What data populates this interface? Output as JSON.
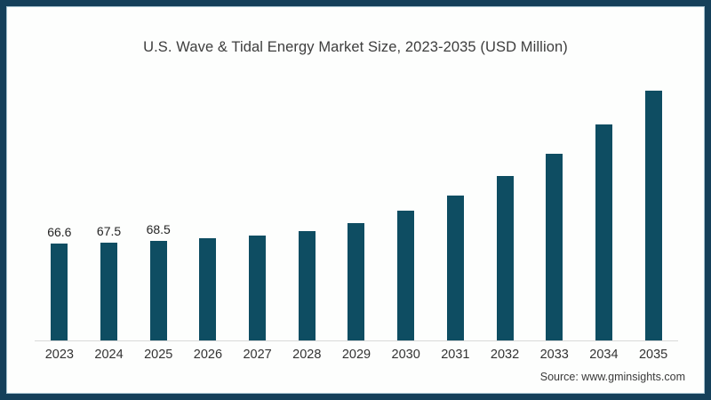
{
  "title": "U.S. Wave & Tidal Energy Market Size, 2023-2035 (USD Million)",
  "source": "Source: www.gminsights.com",
  "colors": {
    "frame_border": "#15405a",
    "bar": "#0e4d62",
    "axis_line": "#d9d9d9",
    "title_text": "#3d3d3d",
    "background": "#fdfefd"
  },
  "chart_data": {
    "type": "bar",
    "title": "U.S. Wave & Tidal Energy Market Size, 2023-2035 (USD Million)",
    "xlabel": "",
    "ylabel": "",
    "categories": [
      "2023",
      "2024",
      "2025",
      "2026",
      "2027",
      "2028",
      "2029",
      "2030",
      "2031",
      "2032",
      "2033",
      "2034",
      "2035"
    ],
    "values": [
      66.6,
      67.5,
      68.5,
      70.1,
      72.1,
      75.2,
      80.7,
      89.5,
      99.6,
      113.0,
      128.5,
      148.5,
      172.0
    ],
    "data_labels": {
      "2023": "66.6",
      "2024": "67.5",
      "2025": "68.5"
    },
    "units": "USD Million",
    "ylim": [
      0,
      178
    ],
    "grid": false,
    "legend": "none",
    "bar_color": "#0e4d62"
  }
}
